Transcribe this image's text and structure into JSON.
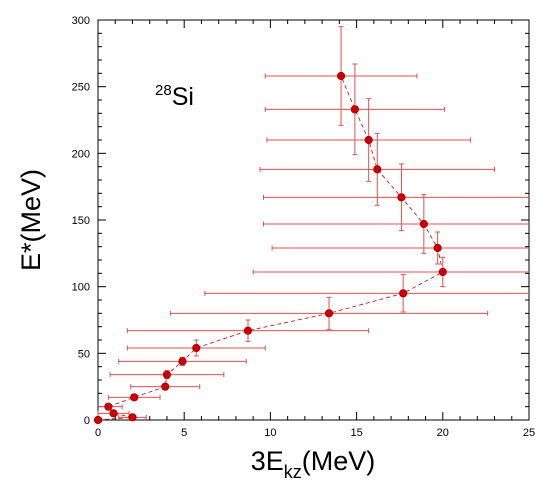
{
  "chart_data": {
    "type": "scatter",
    "title": "",
    "xlabel": {
      "main": "3E",
      "sub": "kz",
      "unit": "(MeV)"
    },
    "ylabel": "E*(MeV)",
    "xlim": [
      0,
      25
    ],
    "ylim": [
      0,
      300
    ],
    "x_ticks": [
      0,
      5,
      10,
      15,
      20,
      25
    ],
    "y_ticks": [
      0,
      50,
      100,
      150,
      200,
      250,
      300
    ],
    "grid": false,
    "colors": {
      "marker": "#cc0000",
      "error_bar": "#e05050",
      "guide_line": "#cc0000",
      "frame": "#000000"
    },
    "connect_points": "dashed",
    "annotation": {
      "sup": "28",
      "text": "Si",
      "placement": "upper-left"
    },
    "points": [
      {
        "x": 0.0,
        "y": 0,
        "xerr": 0.2,
        "yerr": 0
      },
      {
        "x": 2.0,
        "y": 2,
        "xerr": 0.8,
        "yerr": 0
      },
      {
        "x": 0.9,
        "y": 5,
        "xerr": 0.9,
        "yerr": 0
      },
      {
        "x": 0.6,
        "y": 10,
        "xerr": 0.8,
        "yerr": 0
      },
      {
        "x": 2.1,
        "y": 17,
        "xerr": 1.5,
        "yerr": 0
      },
      {
        "x": 3.9,
        "y": 25,
        "xerr": 2.0,
        "yerr": 2
      },
      {
        "x": 4.0,
        "y": 34,
        "xerr": 3.3,
        "yerr": 3
      },
      {
        "x": 4.9,
        "y": 44,
        "xerr": 3.7,
        "yerr": 3
      },
      {
        "x": 5.7,
        "y": 54,
        "xerr": 4.0,
        "yerr": 6
      },
      {
        "x": 8.7,
        "y": 67,
        "xerr": 7.0,
        "yerr": 8
      },
      {
        "x": 13.4,
        "y": 80,
        "xerr": 9.2,
        "yerr": 12
      },
      {
        "x": 17.7,
        "y": 95,
        "xerr": 11.5,
        "yerr": 14
      },
      {
        "x": 20.0,
        "y": 111,
        "xerr": 11.0,
        "yerr": 11
      },
      {
        "x": 19.7,
        "y": 129,
        "xerr": 9.6,
        "yerr": 12
      },
      {
        "x": 18.9,
        "y": 147,
        "xerr": 9.3,
        "yerr": 22
      },
      {
        "x": 17.6,
        "y": 167,
        "xerr": 8.0,
        "yerr": 25
      },
      {
        "x": 16.2,
        "y": 188,
        "xerr": 6.8,
        "yerr": 27
      },
      {
        "x": 15.7,
        "y": 210,
        "xerr": 5.9,
        "yerr": 31
      },
      {
        "x": 14.9,
        "y": 233,
        "xerr": 5.2,
        "yerr": 34
      },
      {
        "x": 14.1,
        "y": 258,
        "xerr": 4.4,
        "yerr": 37
      }
    ]
  }
}
